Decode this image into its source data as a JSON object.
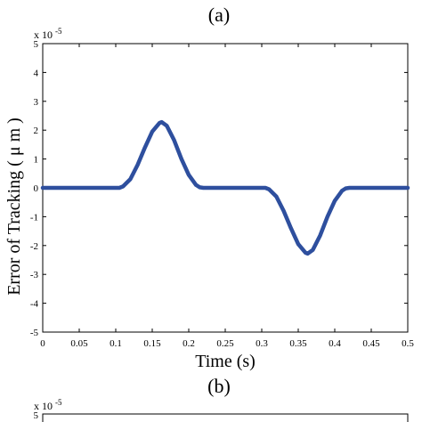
{
  "chart_data": [
    {
      "type": "line",
      "panel_label": "(a)",
      "xlabel": "Time (s)",
      "ylabel": "Error of Tracking ( μ m )",
      "y_multiplier": "x 10",
      "y_multiplier_exp": "-5",
      "xlim": [
        0,
        0.5
      ],
      "ylim": [
        -5,
        5
      ],
      "x_ticks": [
        "0",
        "0.05",
        "0.1",
        "0.15",
        "0.2",
        "0.25",
        "0.3",
        "0.35",
        "0.4",
        "0.45",
        "0.5"
      ],
      "y_ticks": [
        "-5",
        "-4",
        "-3",
        "-2",
        "-1",
        "0",
        "1",
        "2",
        "3",
        "4",
        "5"
      ],
      "grid": false,
      "line_color": "#2e4f9e",
      "series": [
        {
          "x": [
            0,
            0.05,
            0.1,
            0.105,
            0.11,
            0.12,
            0.13,
            0.14,
            0.15,
            0.16,
            0.163,
            0.17,
            0.18,
            0.19,
            0.2,
            0.21,
            0.215,
            0.22,
            0.25,
            0.3,
            0.305,
            0.31,
            0.32,
            0.33,
            0.34,
            0.35,
            0.36,
            0.363,
            0.37,
            0.38,
            0.39,
            0.4,
            0.41,
            0.415,
            0.42,
            0.45,
            0.5
          ],
          "y": [
            0,
            0,
            0,
            0,
            0.05,
            0.3,
            0.8,
            1.4,
            1.95,
            2.25,
            2.28,
            2.15,
            1.65,
            1.0,
            0.45,
            0.1,
            0.02,
            0,
            0,
            0,
            0,
            -0.05,
            -0.3,
            -0.8,
            -1.4,
            -1.95,
            -2.25,
            -2.28,
            -2.15,
            -1.65,
            -1.0,
            -0.45,
            -0.1,
            -0.02,
            0,
            0,
            0
          ]
        }
      ]
    },
    {
      "type": "line",
      "panel_label": "(b)",
      "y_multiplier": "x 10",
      "y_multiplier_exp": "-5",
      "y_ticks": [
        "5"
      ]
    }
  ]
}
